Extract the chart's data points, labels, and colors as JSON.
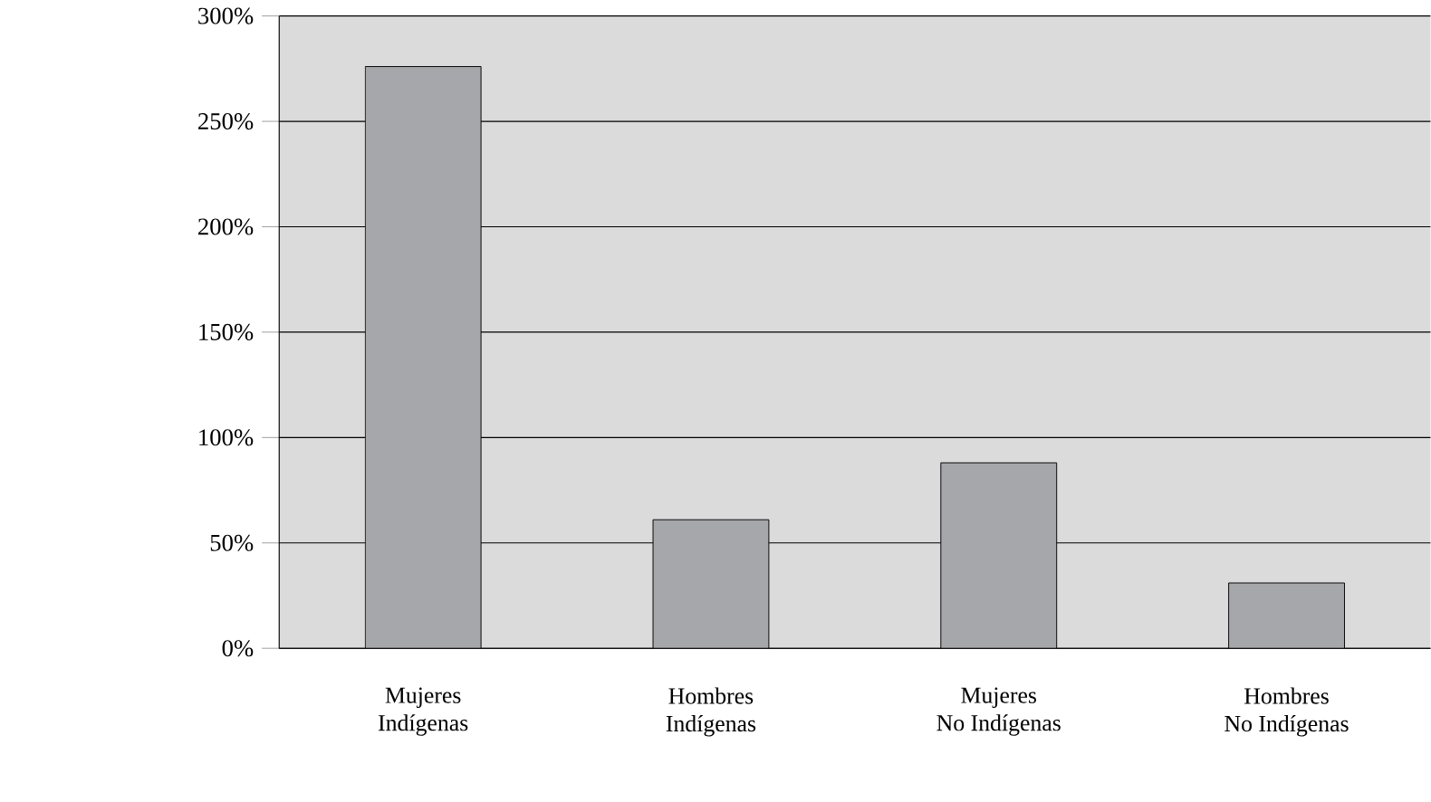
{
  "chart_data": {
    "type": "bar",
    "categories": [
      "Mujeres\nIndígenas",
      "Hombres\nIndígenas",
      "Mujeres\nNo Indígenas",
      "Hombres\nNo Indígenas"
    ],
    "values": [
      276,
      61,
      88,
      31
    ],
    "color": "#a6a7ab",
    "ylim": [
      0,
      300
    ],
    "yticks": [
      {
        "value": 0,
        "label": "0%"
      },
      {
        "value": 50,
        "label": "50%"
      },
      {
        "value": 100,
        "label": "100%"
      },
      {
        "value": 150,
        "label": "150%"
      },
      {
        "value": 200,
        "label": "200%"
      },
      {
        "value": 250,
        "label": "250%"
      },
      {
        "value": 300,
        "label": "300%"
      }
    ],
    "grid": "y"
  }
}
